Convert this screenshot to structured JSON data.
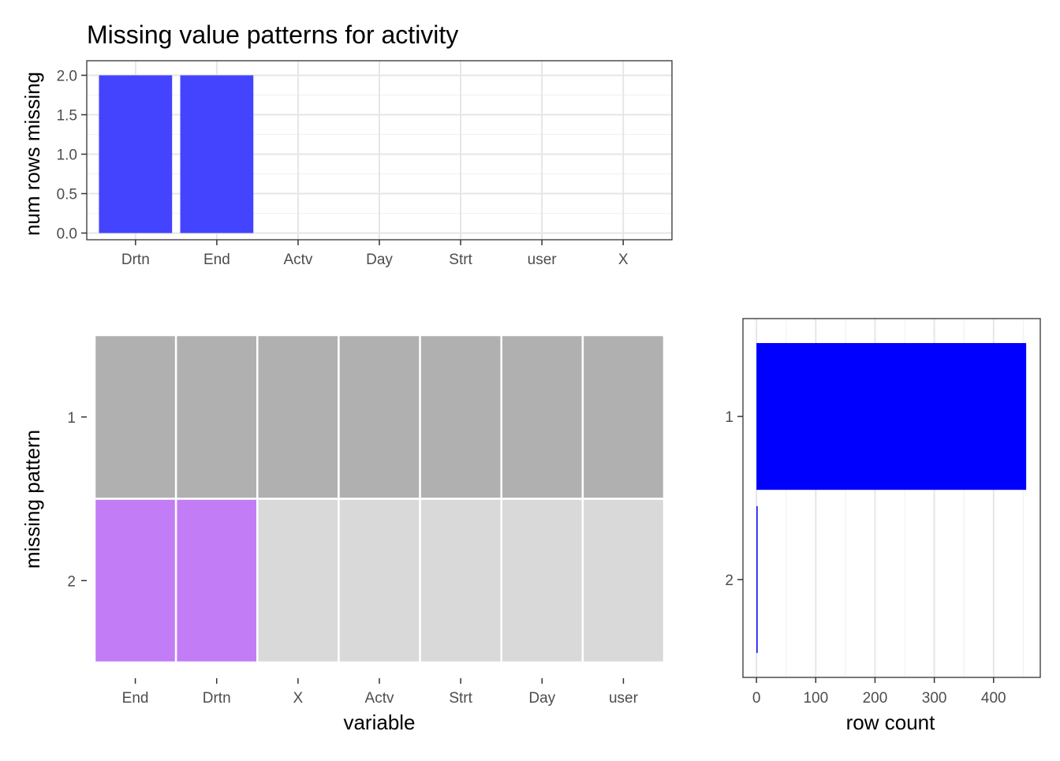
{
  "title": "Missing value patterns for activity",
  "chart_data": [
    {
      "type": "bar",
      "panel": "top",
      "ylabel": "num rows missing",
      "xlabel": "",
      "categories": [
        "Drtn",
        "End",
        "Actv",
        "Day",
        "Strt",
        "user",
        "X"
      ],
      "values": [
        2,
        2,
        0,
        0,
        0,
        0,
        0
      ],
      "ylim": [
        0,
        2.0
      ],
      "yticks": [
        "0.0",
        "0.5",
        "1.0",
        "1.5",
        "2.0"
      ],
      "bar_color": "#4444ff",
      "grid": true
    },
    {
      "type": "heatmap",
      "panel": "pattern",
      "xlabel": "variable",
      "ylabel": "missing pattern",
      "columns": [
        "End",
        "Drtn",
        "X",
        "Actv",
        "Strt",
        "Day",
        "user"
      ],
      "rows": [
        "1",
        "2"
      ],
      "missing": [
        [
          false,
          false,
          false,
          false,
          false,
          false,
          false
        ],
        [
          true,
          true,
          false,
          false,
          false,
          false,
          false
        ]
      ],
      "colors": {
        "complete_pattern": "#b0b0b0",
        "present": "#d9d9d9",
        "missing": "#c27cf5"
      }
    },
    {
      "type": "bar",
      "panel": "row-count",
      "orientation": "horizontal",
      "xlabel": "row count",
      "categories": [
        "1",
        "2"
      ],
      "values": [
        455,
        2
      ],
      "xlim": [
        0,
        460
      ],
      "xticks": [
        "0",
        "100",
        "200",
        "300",
        "400"
      ],
      "bar_color": "#0000ff",
      "grid": true
    }
  ]
}
